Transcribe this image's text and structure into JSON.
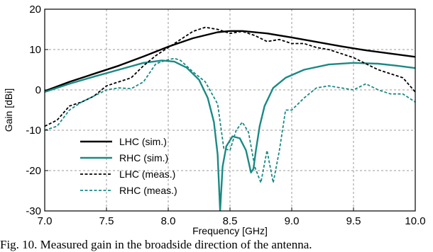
{
  "chart_data": {
    "type": "line",
    "xlabel": "Frequency [GHz]",
    "ylabel": "Gain [dBi]",
    "xlim": [
      7.0,
      10.0
    ],
    "ylim": [
      -30,
      20
    ],
    "xticks": [
      7.0,
      7.5,
      8.0,
      8.5,
      9.0,
      9.5,
      10.0
    ],
    "xtick_labels": [
      "7.0",
      "7.5",
      "8.0",
      "8.5",
      "9.0",
      "9.5",
      "10.0"
    ],
    "yticks": [
      -30,
      -20,
      -10,
      0,
      10,
      20
    ],
    "ytick_labels": [
      "-30",
      "-20",
      "-10",
      "0",
      "10",
      "20"
    ],
    "grid": true,
    "legend_position": "bottom-left",
    "series": [
      {
        "name": "LHC (sim.)",
        "color": "#000000",
        "dash": "solid",
        "x": [
          7.0,
          7.2,
          7.4,
          7.6,
          7.8,
          8.0,
          8.2,
          8.4,
          8.5,
          8.6,
          8.8,
          9.0,
          9.2,
          9.4,
          9.6,
          9.8,
          10.0
        ],
        "y": [
          -0.3,
          2.0,
          4.0,
          6.0,
          8.3,
          10.7,
          12.8,
          14.3,
          14.6,
          14.6,
          14.0,
          13.0,
          11.9,
          10.8,
          9.8,
          9.0,
          8.2
        ]
      },
      {
        "name": "RHC (sim.)",
        "color": "#1a8a84",
        "dash": "solid",
        "x": [
          7.0,
          7.2,
          7.4,
          7.6,
          7.8,
          7.95,
          8.05,
          8.15,
          8.25,
          8.32,
          8.37,
          8.4,
          8.42,
          8.44,
          8.47,
          8.52,
          8.58,
          8.63,
          8.67,
          8.69,
          8.71,
          8.74,
          8.78,
          8.85,
          8.95,
          9.1,
          9.3,
          9.5,
          9.7,
          9.85,
          10.0
        ],
        "y": [
          -0.5,
          1.5,
          3.3,
          5.0,
          6.7,
          7.3,
          7.0,
          5.5,
          2.5,
          -2.0,
          -8.0,
          -16.0,
          -30.0,
          -19.0,
          -14.0,
          -11.5,
          -12.0,
          -15.0,
          -20.5,
          -19.5,
          -15.0,
          -9.0,
          -4.0,
          0.5,
          3.0,
          5.0,
          6.3,
          6.7,
          6.5,
          6.0,
          5.4
        ]
      },
      {
        "name": "LHC (meas.)",
        "color": "#000000",
        "dash": "dashed",
        "x": [
          7.0,
          7.1,
          7.2,
          7.3,
          7.4,
          7.5,
          7.6,
          7.7,
          7.8,
          7.9,
          8.0,
          8.1,
          8.2,
          8.3,
          8.4,
          8.5,
          8.6,
          8.7,
          8.8,
          8.9,
          9.0,
          9.1,
          9.2,
          9.3,
          9.4,
          9.5,
          9.6,
          9.7,
          9.8,
          9.9,
          10.0
        ],
        "y": [
          -9.0,
          -7.5,
          -4.0,
          -3.0,
          -1.5,
          1.0,
          2.0,
          3.0,
          6.0,
          8.5,
          10.5,
          12.5,
          14.5,
          15.5,
          15.0,
          14.0,
          14.5,
          13.5,
          12.0,
          12.5,
          11.5,
          11.5,
          10.5,
          10.0,
          9.0,
          8.0,
          6.5,
          5.0,
          4.0,
          3.0,
          -0.5
        ]
      },
      {
        "name": "RHC (meas.)",
        "color": "#1a8a84",
        "dash": "dashed",
        "x": [
          7.0,
          7.1,
          7.2,
          7.3,
          7.4,
          7.5,
          7.6,
          7.7,
          7.8,
          7.9,
          8.0,
          8.05,
          8.1,
          8.2,
          8.3,
          8.4,
          8.45,
          8.5,
          8.55,
          8.6,
          8.65,
          8.7,
          8.75,
          8.8,
          8.85,
          8.9,
          8.95,
          9.0,
          9.1,
          9.2,
          9.3,
          9.4,
          9.5,
          9.6,
          9.7,
          9.8,
          9.9,
          10.0
        ],
        "y": [
          -10.0,
          -9.0,
          -5.0,
          -3.0,
          -1.5,
          0.0,
          0.5,
          0.3,
          2.0,
          6.5,
          7.5,
          7.8,
          7.3,
          4.5,
          2.0,
          -3.5,
          -14.5,
          -15.0,
          -10.0,
          -8.0,
          -10.5,
          -19.0,
          -23.0,
          -15.0,
          -23.0,
          -15.0,
          -5.0,
          -5.0,
          -2.0,
          0.5,
          1.0,
          0.5,
          0.0,
          1.5,
          0.0,
          -1.0,
          -1.0,
          -3.0
        ]
      }
    ]
  },
  "caption_text": "Fig. 10. Measured gain in the broadside direction of the antenna."
}
